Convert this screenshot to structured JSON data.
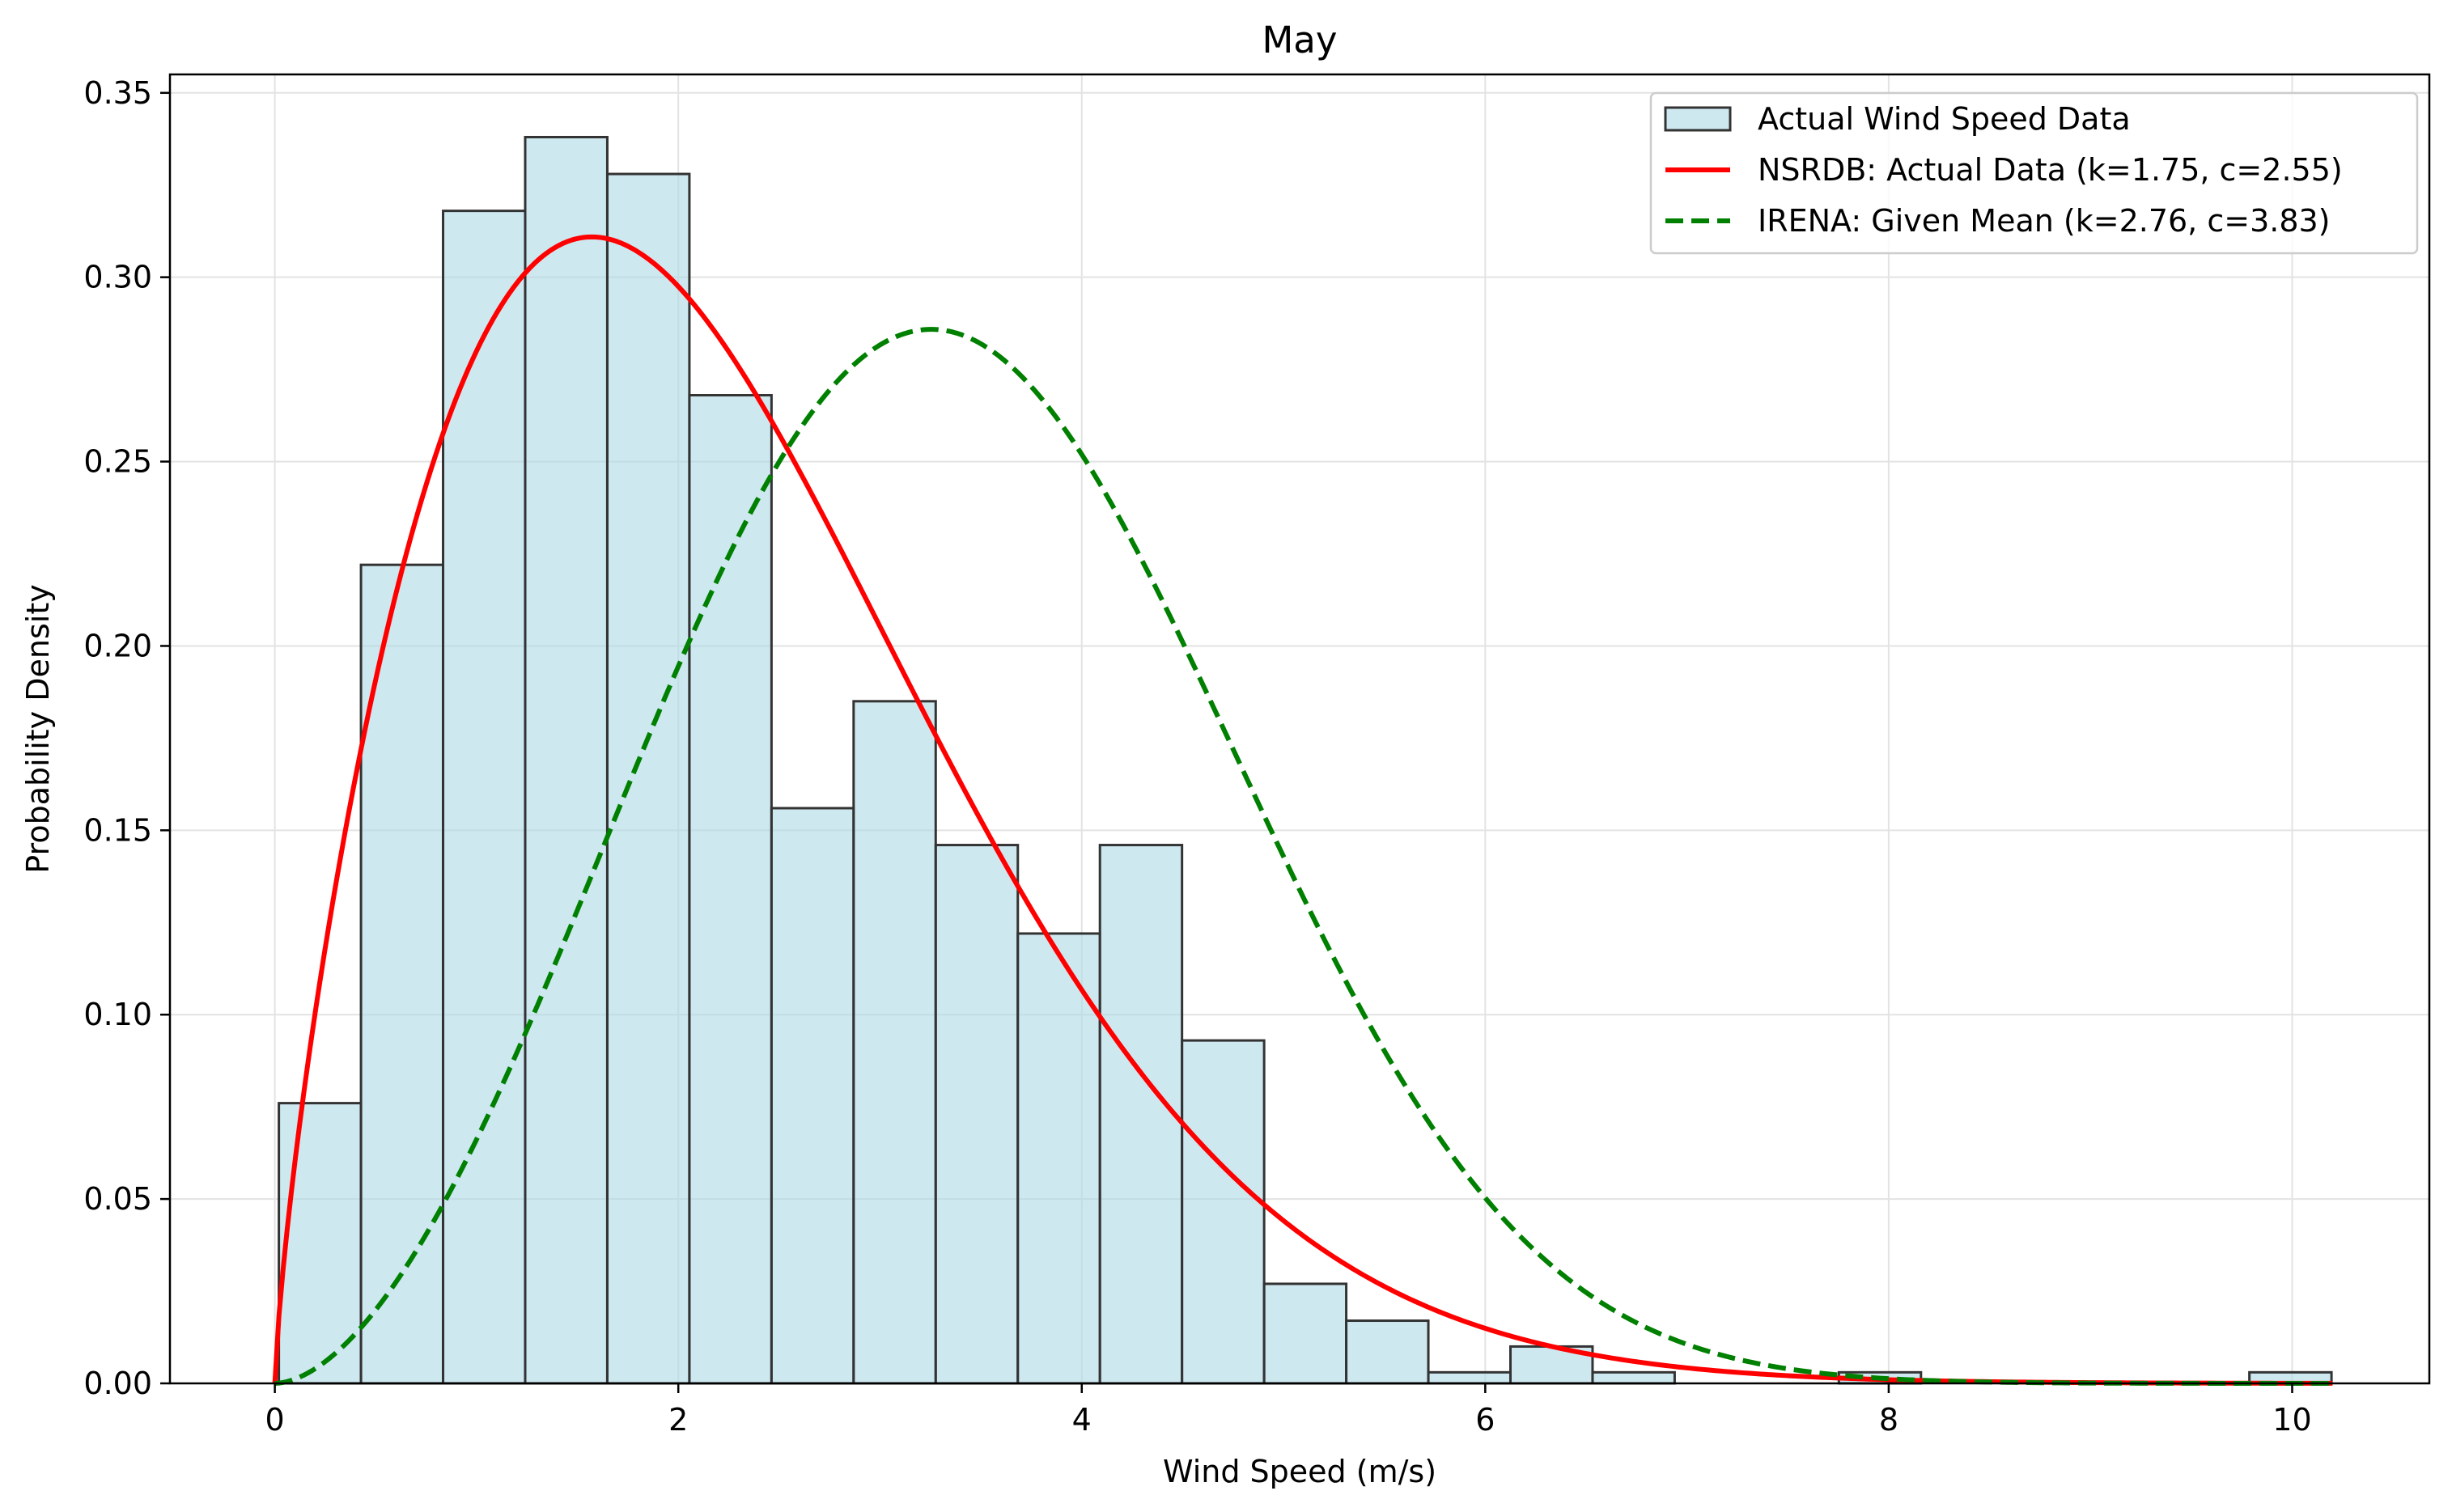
{
  "chart_data": {
    "type": "bar",
    "title": "May",
    "xlabel": "Wind Speed (m/s)",
    "ylabel": "Probability Density",
    "xlim": [
      -0.52,
      10.68
    ],
    "ylim": [
      0,
      0.355
    ],
    "x_ticks": [
      0,
      2,
      4,
      6,
      8,
      10
    ],
    "x_tick_labels": [
      "0",
      "2",
      "4",
      "6",
      "8",
      "10"
    ],
    "y_ticks": [
      0,
      0.05,
      0.1,
      0.15,
      0.2,
      0.25,
      0.3,
      0.35
    ],
    "y_tick_labels": [
      "0.00",
      "0.05",
      "0.10",
      "0.15",
      "0.20",
      "0.25",
      "0.30",
      "0.35"
    ],
    "grid": true,
    "legend_position": "top-right",
    "histogram": {
      "name": "Actual Wind Speed Data",
      "fill_color": "#add8e6",
      "edge_color": "#333333",
      "bin_edges": [
        0.02,
        0.427,
        0.834,
        1.241,
        1.648,
        2.055,
        2.462,
        2.869,
        3.276,
        3.683,
        4.09,
        4.497,
        4.904,
        5.311,
        5.718,
        6.125,
        6.532,
        6.939,
        7.346,
        7.753,
        8.16,
        8.567,
        8.974,
        9.381,
        9.788,
        10.195
      ],
      "values": [
        0.076,
        0.222,
        0.318,
        0.338,
        0.328,
        0.268,
        0.156,
        0.185,
        0.146,
        0.122,
        0.146,
        0.093,
        0.027,
        0.017,
        0.003,
        0.01,
        0.003,
        0,
        0,
        0.003,
        0,
        0,
        0,
        0,
        0.003
      ]
    },
    "series": [
      {
        "name": "NSRDB: Actual Data (k=1.75, c=2.55)",
        "distribution": "weibull",
        "k": 1.75,
        "c": 2.55,
        "x_range": [
          0,
          10.2
        ],
        "color": "#ff0000",
        "line_style": "solid"
      },
      {
        "name": "IRENA: Given Mean (k=2.76, c=3.83)",
        "distribution": "weibull",
        "k": 2.76,
        "c": 3.83,
        "x_range": [
          0,
          10.2
        ],
        "color": "#008000",
        "line_style": "dashed"
      }
    ]
  }
}
